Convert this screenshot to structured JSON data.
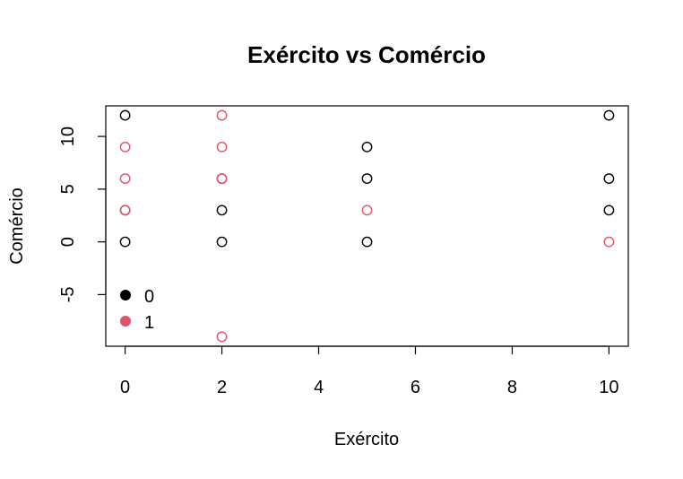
{
  "chart_data": {
    "type": "scatter",
    "title": "Exército vs Comércio",
    "xlabel": "Exército",
    "ylabel": "Comércio",
    "xlim": [
      -0.4,
      10.4
    ],
    "ylim": [
      -9.9,
      12.9
    ],
    "xticks": [
      0,
      2,
      4,
      6,
      8,
      10
    ],
    "yticks": [
      -5,
      0,
      5,
      10
    ],
    "grid": false,
    "legend": {
      "position": "bottom-left",
      "entries": [
        {
          "label": "0",
          "color": "#000000"
        },
        {
          "label": "1",
          "color": "#DF536B"
        }
      ]
    },
    "series": [
      {
        "group": "0",
        "color": "#000000",
        "points": [
          [
            0,
            12
          ],
          [
            0,
            3
          ],
          [
            0,
            0
          ],
          [
            2,
            6
          ],
          [
            2,
            3
          ],
          [
            2,
            0
          ],
          [
            5,
            9
          ],
          [
            5,
            6
          ],
          [
            5,
            0
          ],
          [
            10,
            12
          ],
          [
            10,
            6
          ],
          [
            10,
            3
          ]
        ]
      },
      {
        "group": "1",
        "color": "#DF536B",
        "points": [
          [
            0,
            9
          ],
          [
            0,
            6
          ],
          [
            0,
            3
          ],
          [
            2,
            12
          ],
          [
            2,
            9
          ],
          [
            2,
            6
          ],
          [
            2,
            -9
          ],
          [
            5,
            3
          ],
          [
            10,
            0
          ]
        ]
      }
    ]
  }
}
